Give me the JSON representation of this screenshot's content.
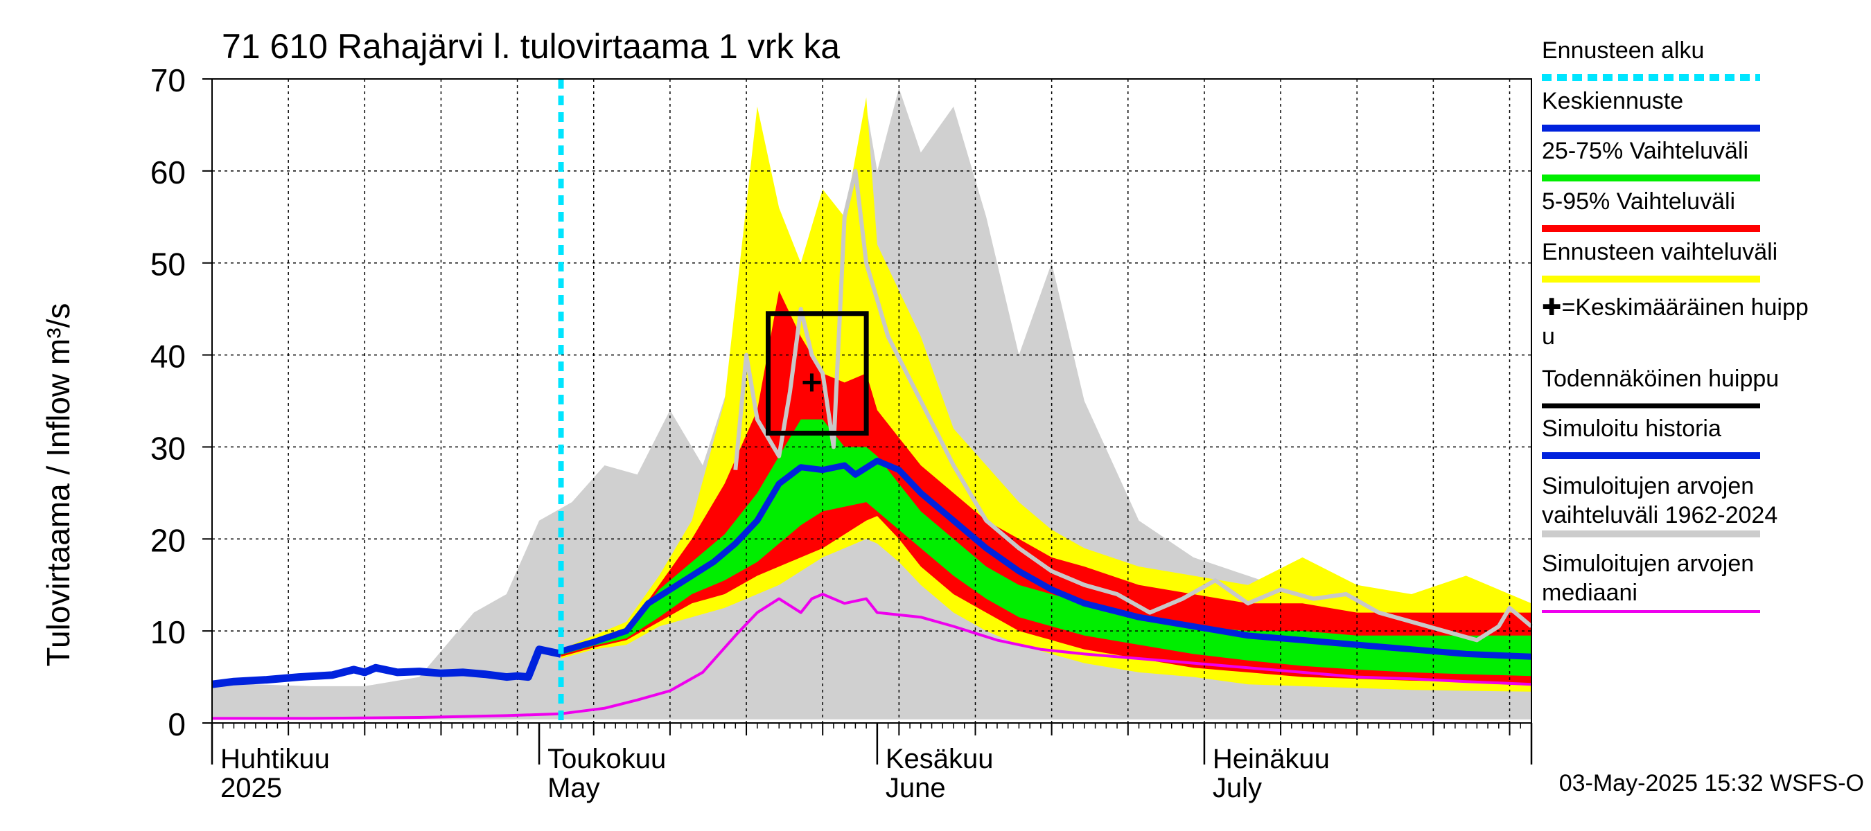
{
  "chart_data": {
    "type": "area",
    "title": "71 610 Rahajärvi l. tulovirtaama 1 vrk ka",
    "ylabel": "Tulovirtaama / Inflow    m³/s",
    "ylim": [
      0,
      70
    ],
    "yticks": [
      0,
      10,
      20,
      30,
      40,
      50,
      60,
      70
    ],
    "xlim": [
      "2025-04-01",
      "2025-07-31"
    ],
    "month_labels": [
      {
        "fi": "Huhtikuu",
        "en": "2025",
        "date": "2025-04-01"
      },
      {
        "fi": "Toukokuu",
        "en": "May",
        "date": "2025-05-01"
      },
      {
        "fi": "Kesäkuu",
        "en": "June",
        "date": "2025-06-01"
      },
      {
        "fi": "Heinäkuu",
        "en": "July",
        "date": "2025-07-01"
      }
    ],
    "forecast_start": "2025-05-03",
    "timestamp": "03-May-2025 15:32 WSFS-O",
    "legend": [
      {
        "label": "Ennusteen alku",
        "color": "#00e5ff",
        "style": "dashed"
      },
      {
        "label": "Keskiennuste",
        "color": "#0022dd",
        "style": "solid"
      },
      {
        "label": "25-75% Vaihteluväli",
        "color": "#00ee00",
        "style": "solid"
      },
      {
        "label": "5-95% Vaihteluväli",
        "color": "#ff0000",
        "style": "solid"
      },
      {
        "label": "Ennusteen vaihteluväli",
        "color": "#ffff00",
        "style": "solid"
      },
      {
        "label": "✚=Keskimääräinen huipp",
        "label2": "u",
        "color": "",
        "style": "none"
      },
      {
        "label": "Todennäköinen huippu",
        "color": "#000000",
        "style": "solid"
      },
      {
        "label": "Simuloitu historia",
        "color": "#0022dd",
        "style": "solid"
      },
      {
        "label": "Simuloitujen arvojen",
        "label2": "vaihteluväli 1962-2024",
        "color": "#cccccc",
        "style": "solid"
      },
      {
        "label": "Simuloitujen arvojen",
        "label2": "mediaani",
        "color": "#ee00ee",
        "style": "solid"
      }
    ],
    "series": {
      "hist_range": {
        "dates": [
          "2025-04-01",
          "2025-04-05",
          "2025-04-10",
          "2025-04-15",
          "2025-04-20",
          "2025-04-25",
          "2025-04-28",
          "2025-05-01",
          "2025-05-04",
          "2025-05-07",
          "2025-05-10",
          "2025-05-13",
          "2025-05-16",
          "2025-05-19",
          "2025-05-22",
          "2025-05-25",
          "2025-05-27",
          "2025-05-29",
          "2025-05-31",
          "2025-06-01",
          "2025-06-03",
          "2025-06-05",
          "2025-06-08",
          "2025-06-11",
          "2025-06-14",
          "2025-06-17",
          "2025-06-20",
          "2025-06-25",
          "2025-06-30",
          "2025-07-05",
          "2025-07-10",
          "2025-07-15",
          "2025-07-20",
          "2025-07-25",
          "2025-07-31"
        ],
        "upper": [
          4.5,
          4.2,
          4.0,
          4.0,
          5.0,
          12.0,
          14.0,
          22.0,
          24.0,
          28.0,
          27.0,
          34.0,
          28.0,
          39.0,
          35.0,
          40.0,
          45.0,
          55.0,
          67.0,
          60.0,
          69.0,
          62.0,
          67.0,
          55.0,
          40.0,
          50.0,
          35.0,
          22.0,
          18.0,
          16.0,
          14.0,
          13.0,
          12.0,
          11.0,
          10.0
        ],
        "lower": [
          0.4,
          0.4,
          0.4,
          0.4,
          0.4,
          0.4,
          0.4,
          0.4,
          0.4,
          0.4,
          0.4,
          0.4,
          0.4,
          0.4,
          0.4,
          0.4,
          0.4,
          0.4,
          0.4,
          0.4,
          0.4,
          0.4,
          0.4,
          0.4,
          0.4,
          0.4,
          0.4,
          0.4,
          0.4,
          0.4,
          0.4,
          0.4,
          0.4,
          0.4,
          0.4
        ]
      },
      "forecast_range": {
        "dates": [
          "2025-05-03",
          "2025-05-06",
          "2025-05-09",
          "2025-05-12",
          "2025-05-15",
          "2025-05-18",
          "2025-05-21",
          "2025-05-23",
          "2025-05-25",
          "2025-05-27",
          "2025-05-29",
          "2025-05-31",
          "2025-06-01",
          "2025-06-03",
          "2025-06-05",
          "2025-06-08",
          "2025-06-11",
          "2025-06-14",
          "2025-06-17",
          "2025-06-20",
          "2025-06-25",
          "2025-06-30",
          "2025-07-05",
          "2025-07-10",
          "2025-07-15",
          "2025-07-20",
          "2025-07-25",
          "2025-07-31"
        ],
        "upper": [
          8.0,
          9.5,
          11.0,
          16.0,
          22.0,
          35.0,
          67.0,
          56.0,
          50.0,
          58.0,
          55.0,
          68.0,
          52.0,
          47.0,
          42.0,
          32.0,
          28.0,
          24.0,
          21.0,
          19.0,
          17.0,
          16.0,
          15.0,
          18.0,
          15.0,
          14.0,
          16.0,
          13.0
        ],
        "lower": [
          7.0,
          8.0,
          8.5,
          10.5,
          11.5,
          12.5,
          14.0,
          15.0,
          16.5,
          18.0,
          19.0,
          20.0,
          19.5,
          17.5,
          15.0,
          12.0,
          10.0,
          8.5,
          7.5,
          6.5,
          5.5,
          5.0,
          4.2,
          4.0,
          3.8,
          3.6,
          3.5,
          3.4
        ]
      },
      "p5_95": {
        "dates": [
          "2025-05-03",
          "2025-05-06",
          "2025-05-09",
          "2025-05-12",
          "2025-05-15",
          "2025-05-18",
          "2025-05-21",
          "2025-05-23",
          "2025-05-25",
          "2025-05-27",
          "2025-05-29",
          "2025-05-31",
          "2025-06-01",
          "2025-06-03",
          "2025-06-05",
          "2025-06-08",
          "2025-06-11",
          "2025-06-14",
          "2025-06-17",
          "2025-06-20",
          "2025-06-25",
          "2025-06-30",
          "2025-07-05",
          "2025-07-10",
          "2025-07-15",
          "2025-07-20",
          "2025-07-25",
          "2025-07-31"
        ],
        "upper": [
          7.5,
          9.0,
          10.0,
          15.0,
          20.0,
          26.0,
          34.0,
          47.0,
          42.0,
          38.0,
          37.0,
          38.0,
          34.0,
          31.0,
          28.0,
          25.0,
          22.0,
          20.0,
          18.0,
          17.0,
          15.0,
          14.0,
          13.0,
          13.0,
          12.0,
          12.0,
          12.0,
          12.0
        ],
        "lower": [
          7.2,
          8.2,
          9.0,
          11.0,
          13.0,
          14.0,
          16.0,
          17.0,
          18.0,
          19.0,
          20.5,
          22.0,
          22.5,
          20.0,
          17.0,
          14.0,
          12.0,
          10.0,
          9.0,
          8.0,
          7.0,
          6.0,
          5.5,
          5.0,
          4.8,
          4.6,
          4.5,
          4.3
        ]
      },
      "p25_75": {
        "dates": [
          "2025-05-03",
          "2025-05-06",
          "2025-05-09",
          "2025-05-12",
          "2025-05-15",
          "2025-05-18",
          "2025-05-21",
          "2025-05-23",
          "2025-05-25",
          "2025-05-27",
          "2025-05-29",
          "2025-05-31",
          "2025-06-01",
          "2025-06-03",
          "2025-06-05",
          "2025-06-08",
          "2025-06-11",
          "2025-06-14",
          "2025-06-17",
          "2025-06-20",
          "2025-06-25",
          "2025-06-30",
          "2025-07-05",
          "2025-07-10",
          "2025-07-15",
          "2025-07-20",
          "2025-07-25",
          "2025-07-31"
        ],
        "upper": [
          7.8,
          8.8,
          10.0,
          14.5,
          17.5,
          20.5,
          25.0,
          29.0,
          33.0,
          33.0,
          30.0,
          30.0,
          29.0,
          26.0,
          23.0,
          20.0,
          17.0,
          15.0,
          14.0,
          13.0,
          11.5,
          10.5,
          10.0,
          10.0,
          9.5,
          9.5,
          9.5,
          9.5
        ],
        "lower": [
          7.4,
          8.4,
          9.2,
          11.5,
          14.0,
          15.5,
          17.5,
          19.5,
          21.5,
          23.0,
          23.5,
          24.0,
          23.0,
          21.0,
          19.0,
          16.0,
          13.5,
          11.5,
          10.5,
          9.5,
          8.5,
          7.5,
          6.8,
          6.2,
          5.8,
          5.5,
          5.3,
          5.1
        ]
      },
      "median_hist": {
        "dates": [
          "2025-04-01",
          "2025-04-10",
          "2025-04-20",
          "2025-04-28",
          "2025-05-03",
          "2025-05-07",
          "2025-05-10",
          "2025-05-13",
          "2025-05-16",
          "2025-05-19",
          "2025-05-21",
          "2025-05-23",
          "2025-05-25",
          "2025-05-26",
          "2025-05-27",
          "2025-05-29",
          "2025-05-31",
          "2025-06-01",
          "2025-06-05",
          "2025-06-08",
          "2025-06-12",
          "2025-06-16",
          "2025-06-20",
          "2025-06-25",
          "2025-06-30",
          "2025-07-05",
          "2025-07-10",
          "2025-07-15",
          "2025-07-20",
          "2025-07-25",
          "2025-07-31"
        ],
        "values": [
          0.5,
          0.5,
          0.6,
          0.8,
          1.0,
          1.6,
          2.5,
          3.5,
          5.5,
          9.5,
          12.0,
          13.5,
          12.0,
          13.5,
          14.0,
          13.0,
          13.5,
          12.0,
          11.5,
          10.5,
          9.0,
          8.0,
          7.5,
          7.0,
          6.5,
          6.0,
          5.5,
          5.0,
          4.8,
          4.5,
          4.2
        ]
      },
      "sim_history": {
        "dates": [
          "2025-04-01",
          "2025-04-03",
          "2025-04-06",
          "2025-04-09",
          "2025-04-12",
          "2025-04-14",
          "2025-04-15",
          "2025-04-16",
          "2025-04-18",
          "2025-04-20",
          "2025-04-22",
          "2025-04-24",
          "2025-04-26",
          "2025-04-28",
          "2025-04-29",
          "2025-04-30",
          "2025-05-01",
          "2025-05-03"
        ],
        "values": [
          4.2,
          4.5,
          4.7,
          5.0,
          5.2,
          5.8,
          5.5,
          6.0,
          5.5,
          5.6,
          5.4,
          5.5,
          5.3,
          5.0,
          5.1,
          5.0,
          8.0,
          7.5
        ]
      },
      "mean_forecast": {
        "dates": [
          "2025-05-03",
          "2025-05-06",
          "2025-05-09",
          "2025-05-11",
          "2025-05-13",
          "2025-05-15",
          "2025-05-17",
          "2025-05-19",
          "2025-05-21",
          "2025-05-23",
          "2025-05-25",
          "2025-05-27",
          "2025-05-29",
          "2025-05-30",
          "2025-06-01",
          "2025-06-03",
          "2025-06-05",
          "2025-06-08",
          "2025-06-11",
          "2025-06-14",
          "2025-06-17",
          "2025-06-20",
          "2025-06-25",
          "2025-06-30",
          "2025-07-05",
          "2025-07-10",
          "2025-07-15",
          "2025-07-20",
          "2025-07-25",
          "2025-07-31"
        ],
        "values": [
          7.8,
          8.8,
          10.0,
          13.0,
          14.5,
          16.0,
          17.5,
          19.5,
          22.0,
          26.0,
          27.8,
          27.5,
          28.0,
          27.0,
          28.5,
          27.5,
          25.0,
          22.0,
          19.0,
          16.5,
          14.5,
          13.0,
          11.5,
          10.5,
          9.5,
          9.0,
          8.5,
          8.0,
          7.5,
          7.2
        ]
      },
      "gray_line": {
        "dates": [
          "2025-05-19",
          "2025-05-20",
          "2025-05-21",
          "2025-05-23",
          "2025-05-24",
          "2025-05-25",
          "2025-05-26",
          "2025-05-27",
          "2025-05-28",
          "2025-05-29",
          "2025-05-30",
          "2025-05-31",
          "2025-06-02",
          "2025-06-05",
          "2025-06-08",
          "2025-06-11",
          "2025-06-14",
          "2025-06-17",
          "2025-06-20",
          "2025-06-23",
          "2025-06-26",
          "2025-06-29",
          "2025-07-02",
          "2025-07-05",
          "2025-07-08",
          "2025-07-11",
          "2025-07-14",
          "2025-07-17",
          "2025-07-20",
          "2025-07-23",
          "2025-07-26",
          "2025-07-28",
          "2025-07-29",
          "2025-07-31"
        ],
        "values": [
          27.5,
          40.0,
          33.0,
          29.0,
          36.0,
          45.0,
          40.0,
          38.0,
          30.0,
          55.0,
          60.0,
          50.0,
          42.0,
          35.0,
          28.0,
          22.0,
          19.0,
          16.5,
          15.0,
          14.0,
          12.0,
          13.5,
          15.5,
          13.0,
          14.5,
          13.5,
          14.0,
          12.0,
          11.0,
          10.0,
          9.0,
          10.5,
          12.5,
          10.5
        ]
      }
    },
    "mean_peak": {
      "date": "2025-05-26",
      "value": 37.0
    },
    "likely_peak_box": {
      "start": "2025-05-22",
      "end": "2025-05-31",
      "low": 31.5,
      "high": 44.5
    }
  }
}
